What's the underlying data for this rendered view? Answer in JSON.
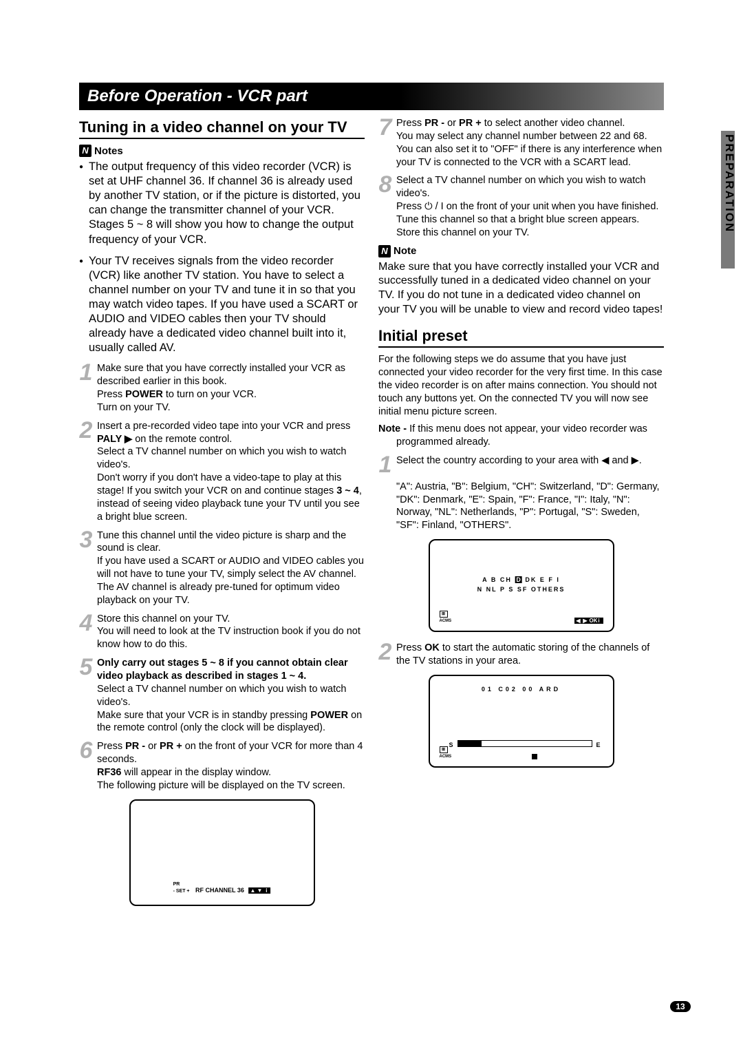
{
  "page_number": "13",
  "side_tab": "PREPARATION",
  "title_bar": "Before Operation - VCR part",
  "left": {
    "section_title": "Tuning in a video channel on your TV",
    "notes_label": "Notes",
    "bullets": [
      "The output frequency of this video recorder (VCR) is set at UHF channel 36. If channel 36 is already used by another TV station, or if the picture is distorted, you can change the transmitter channel of your VCR. Stages 5 ~ 8 will show you how to change the output frequency of your VCR.",
      "Your TV receives signals from the video recorder (VCR) like another TV station. You have to select a channel number on your TV and tune it in so that you may watch video tapes. If you have used a SCART or AUDIO and VIDEO cables then your TV should already have a  dedicated video channel built into it, usually called AV."
    ],
    "steps": [
      "Make sure that you have correctly installed your VCR as described earlier in this book.\nPress <b>POWER</b> to turn on your VCR.\nTurn on your TV.",
      "Insert  a pre-recorded video tape into your VCR and press  <b>PALY ▶</b> on the remote control.\nSelect a TV channel number on which you wish to watch video's.\nDon't worry if you don't have a video-tape to play at this stage! If you switch your VCR on and continue stages <b>3 ~ 4</b>, instead of seeing video playback tune your TV until you see a bright blue screen.",
      "Tune this channel until the video picture is sharp and the sound is clear.\nIf you have used a SCART or AUDIO and VIDEO cables you will not have to tune your TV, simply select the AV channel. The AV channel is already pre-tuned for optimum video playback on your TV.",
      "Store this channel on your TV.\nYou will need to look at the TV instruction book if you do not know how to do this.",
      "<b>Only carry out stages 5 ~ 8 if you cannot obtain clear video playback as described in stages 1 ~ 4.</b>\nSelect a TV channel number on which you wish to watch video's.\nMake sure that your VCR is in standby pressing <b>POWER</b> on the remote control (only the clock will be displayed).",
      "Press <b>PR -</b> or <b>PR +</b> on the front of your VCR for more than 4 seconds.\n<b>RF36</b>  will appear in the display window.\nThe following picture will be displayed on the TV screen."
    ],
    "tv_rf": {
      "label_left": "PR\n- SET +",
      "text": "RF  CHANNEL  36"
    }
  },
  "right": {
    "steps": [
      "Press <b>PR -</b> or <b>PR +</b> to select another video channel.\nYou may select any channel number between 22 and 68.\nYou can also set it to \"OFF\" if there is any interference when  your TV is connected to the VCR with a SCART lead.",
      "Select a TV channel number on which you wish to watch video's.\nPress ⏻ / I on the front of your unit when you have finished.\nTune this channel so that a bright blue screen appears.\nStore this channel on your TV."
    ],
    "note_label": "Note",
    "note_body": "Make sure that you have correctly installed your VCR  and successfully tuned in a dedicated video channel on your TV. If you do not tune in a dedicated video channel on your TV you will be unable to view and record video tapes!",
    "section2_title": "Initial preset",
    "intro": "For the following steps we do assume that you have just connected your video recorder for the very first time. In this case the video recorder is on after mains connection. You should not touch any buttons yet. On the connected TV you will now see initial menu picture screen.",
    "sub_note": "<b>Note -</b> If this menu does not appear, your video recorder was programmed already.",
    "steps2": [
      "Select the country according to your area with ◀ and ▶.\n\n\"A\": Austria, \"B\": Belgium, \"CH\": Switzerland, \"D\": Germany, \"DK\": Denmark, \"E\": Spain, \"F\": France, \"I\": Italy, \"N\": Norway, \"NL\": Netherlands, \"P\": Portugal, \"S\": Sweden, \"SF\": Finland, \"OTHERS\".",
      "Press <b>OK</b> to start the automatic storing of the channels of the TV stations in your area."
    ],
    "tv_country": {
      "row1_pre": "A   B   CH  ",
      "row1_hl": "D",
      "row1_post": "  DK   E    F    I",
      "row2": "N   NL   P   S   SF   OTHERS",
      "acms": "ACMS"
    },
    "tv_scan": {
      "top": "01    C02    00   ARD",
      "s": "S",
      "e": "E",
      "acms": "ACMS"
    }
  }
}
